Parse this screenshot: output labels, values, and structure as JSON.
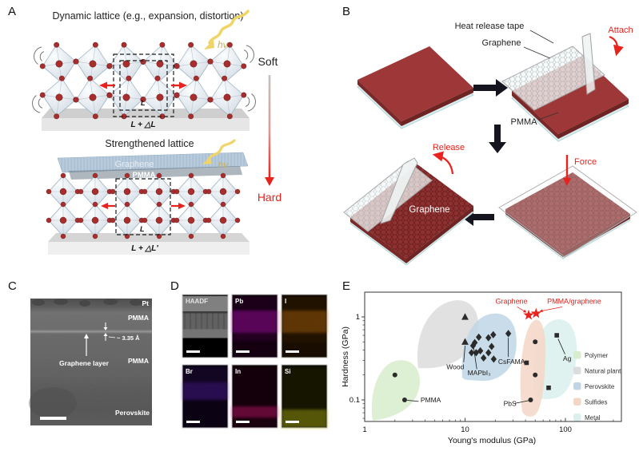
{
  "panels": {
    "A": {
      "label": "A",
      "title_top": "Dynamic lattice (e.g., expansion, distortion)",
      "title_bottom": "Strengthened lattice",
      "soft": "Soft",
      "hard": "Hard",
      "hv": "hν",
      "graphene_label": "Graphene",
      "pmma_label": "PMMA",
      "unit_l": "L",
      "unit_l2": "L",
      "expanded": "L + △L",
      "expanded_prime": "L + △L'",
      "accent_red": "#e8231e"
    },
    "B": {
      "label": "B",
      "heat_release_tape": "Heat release tape",
      "graphene": "Graphene",
      "pmma": "PMMA",
      "attach": "Attach",
      "force": "Force",
      "release": "Release",
      "graphene_film": "Graphene"
    },
    "C": {
      "label": "C",
      "pt": "Pt",
      "pmma_top": "PMMA",
      "spacing": "~ 3.35 Å",
      "graphene_layer": "Graphene layer",
      "pmma_mid": "PMMA",
      "perovskite": "Perovskite"
    },
    "D": {
      "label": "D",
      "maps": [
        {
          "name": "HAADF",
          "color": "#c8c8c8"
        },
        {
          "name": "Pb",
          "color": "#cf10cf"
        },
        {
          "name": "I",
          "color": "#dd7d10"
        },
        {
          "name": "Br",
          "color": "#6d28d8"
        },
        {
          "name": "In",
          "color": "#e81780"
        },
        {
          "name": "Si",
          "color": "#c9c916"
        }
      ]
    },
    "E": {
      "label": "E"
    }
  },
  "chart_data": {
    "type": "scatter",
    "xlabel": "Young's modulus (GPa)",
    "ylabel": "Hardness (GPa)",
    "xscale": "log",
    "yscale": "log",
    "xlim": [
      1,
      360
    ],
    "ylim": [
      0.055,
      2.0
    ],
    "xticks": [
      1,
      10,
      100
    ],
    "yticks": [
      0.1,
      1
    ],
    "grid": false,
    "legend": {
      "position": "right",
      "items": [
        "Polymer",
        "Natural plant",
        "Perovskite",
        "Sulfides",
        "Metal"
      ]
    },
    "regions": [
      {
        "name": "Polymer",
        "color": "#d7edcb"
      },
      {
        "name": "Natural plant",
        "color": "#dcdcdc"
      },
      {
        "name": "Perovskite",
        "color": "#c0d6e6"
      },
      {
        "name": "Sulfides",
        "color": "#f4d6c5"
      },
      {
        "name": "Metal",
        "color": "#daf0ec"
      }
    ],
    "series": [
      {
        "name": "polymer-sulfide-points",
        "marker": "circle",
        "color": "#2b2b2b",
        "points": [
          [
            2.0,
            0.2
          ],
          [
            2.5,
            0.1
          ],
          [
            50,
            0.5
          ],
          [
            50,
            0.2
          ],
          [
            45,
            0.1
          ]
        ]
      },
      {
        "name": "natural-plant-points",
        "marker": "triangle",
        "color": "#2b2b2b",
        "points": [
          [
            10,
            1.0
          ],
          [
            10,
            0.5
          ]
        ]
      },
      {
        "name": "perovskite-points",
        "marker": "diamond",
        "color": "#2b2b2b",
        "points": [
          [
            13.7,
            0.57
          ],
          [
            12.5,
            0.49
          ],
          [
            12,
            0.45
          ],
          [
            11.6,
            0.37
          ],
          [
            12.9,
            0.37
          ],
          [
            14.2,
            0.39
          ],
          [
            15.3,
            0.32
          ],
          [
            17.1,
            0.56
          ],
          [
            19.1,
            0.61
          ],
          [
            18.4,
            0.44
          ],
          [
            17.1,
            0.37
          ],
          [
            19.3,
            0.31
          ],
          [
            27,
            0.63
          ]
        ]
      },
      {
        "name": "metal-points",
        "marker": "square",
        "color": "#2b2b2b",
        "points": [
          [
            41,
            0.28
          ],
          [
            68,
            0.14
          ],
          [
            82,
            0.6
          ]
        ]
      },
      {
        "name": "graphene-stars",
        "marker": "star",
        "color": "#e8231e",
        "points": [
          [
            43,
            1.05
          ],
          [
            51,
            1.1
          ]
        ]
      }
    ],
    "annotations": [
      {
        "text": "PMMA",
        "x": 2.5,
        "y": 0.1,
        "lx": 3.6,
        "ly": 0.094,
        "anchor": "start",
        "color": "#1a1a1a",
        "line": [
          [
            2.65,
            0.099
          ],
          [
            3.45,
            0.096
          ]
        ]
      },
      {
        "text": "Wood",
        "x": 10,
        "y": 0.5,
        "lx": 8.0,
        "ly": 0.235,
        "anchor": "middle",
        "color": "#1a1a1a",
        "line": [
          [
            9.7,
            0.285
          ],
          [
            10,
            0.45
          ]
        ]
      },
      {
        "text": "MAPbI₃",
        "x": 12,
        "y": 0.45,
        "lx": 13.8,
        "ly": 0.198,
        "anchor": "middle",
        "color": "#1a1a1a",
        "line": [
          [
            13.1,
            0.235
          ],
          [
            12.2,
            0.42
          ]
        ]
      },
      {
        "text": "CsFAMA",
        "x": 27,
        "y": 0.63,
        "lx": 39.5,
        "ly": 0.27,
        "anchor": "end",
        "color": "#1a1a1a",
        "line": [
          [
            27,
            0.33
          ],
          [
            27,
            0.56
          ]
        ]
      },
      {
        "text": "PbS",
        "x": 45,
        "y": 0.1,
        "lx": 28,
        "ly": 0.085,
        "anchor": "middle",
        "color": "#1a1a1a",
        "line": [
          [
            31.5,
            0.091
          ],
          [
            43,
            0.098
          ]
        ]
      },
      {
        "text": "Ag",
        "x": 82,
        "y": 0.6,
        "lx": 104,
        "ly": 0.295,
        "anchor": "middle",
        "color": "#1a1a1a",
        "line": [
          [
            99,
            0.355
          ],
          [
            84.5,
            0.545
          ]
        ]
      },
      {
        "text": "Graphene",
        "x": 43,
        "y": 1.05,
        "lx": 29,
        "ly": 1.44,
        "anchor": "middle",
        "color": "#e8231e",
        "arrow": true,
        "line": [
          [
            33,
            1.32
          ],
          [
            40.5,
            1.14
          ]
        ]
      },
      {
        "text": "PMMA/graphene",
        "x": 51,
        "y": 1.1,
        "lx": 122,
        "ly": 1.44,
        "anchor": "middle",
        "color": "#e8231e",
        "arrow": true,
        "line": [
          [
            93,
            1.32
          ],
          [
            56,
            1.17
          ]
        ]
      }
    ]
  }
}
